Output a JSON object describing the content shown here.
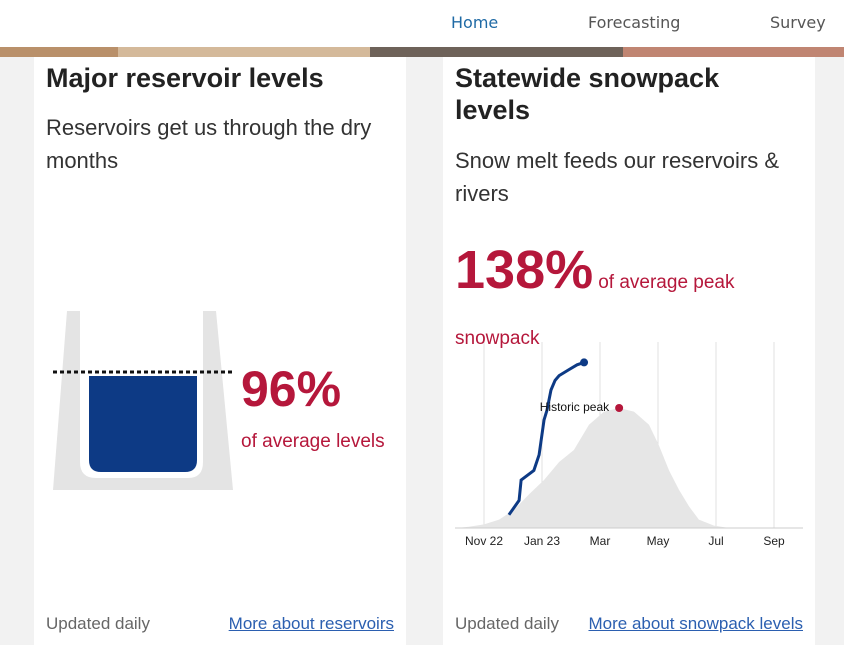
{
  "nav": {
    "items": [
      "Home",
      "Forecasting",
      "Survey"
    ]
  },
  "reservoir": {
    "title": "Major reservoir levels",
    "subtitle": "Reservoirs get us through the dry months",
    "value": 96,
    "value_label": "96%",
    "caption": "of average levels",
    "footer": "Updated daily",
    "link": "More about reservoirs"
  },
  "snowpack": {
    "title": "Statewide snowpack levels",
    "subtitle": "Snow melt feeds our reservoirs & rivers",
    "value": 138,
    "value_label": "138%",
    "caption": "of average peak snowpack",
    "footer": "Updated daily",
    "link": "More about snowpack levels"
  },
  "chart_data": {
    "type": "line",
    "xlim": [
      -1,
      11
    ],
    "ylim": [
      0,
      155
    ],
    "xticks": [
      {
        "value": 0,
        "label": "Nov 22"
      },
      {
        "value": 2,
        "label": "Jan 23"
      },
      {
        "value": 4,
        "label": "Mar"
      },
      {
        "value": 6,
        "label": "May"
      },
      {
        "value": 8,
        "label": "Jul"
      },
      {
        "value": 10,
        "label": "Sep"
      }
    ],
    "grid": true,
    "series": [
      {
        "color": "#e6e6e6",
        "fill": true,
        "x": [
          -0.93,
          -0.52,
          0,
          0.52,
          1.03,
          1.55,
          2.07,
          2.59,
          3.1,
          3.62,
          4.14,
          4.66,
          5.17,
          5.69,
          6.03,
          6.38,
          6.72,
          7.07,
          7.41,
          7.93,
          8.45
        ],
        "values": [
          0,
          1,
          3,
          7,
          15,
          28,
          40,
          55,
          65,
          86,
          97,
          100,
          97,
          86,
          69,
          48,
          32,
          18,
          7,
          2,
          0
        ]
      },
      {
        "color": "#0d3a85",
        "fill": false,
        "x": [
          0.86,
          1.21,
          1.28,
          1.72,
          1.9,
          2.07,
          2.17,
          2.31,
          2.45,
          2.59,
          2.93,
          3.21,
          3.45
        ],
        "values": [
          11,
          23,
          40,
          48,
          61,
          90,
          98,
          115,
          123,
          127,
          132,
          136,
          138
        ]
      }
    ],
    "annotation": {
      "text": "Historic peak",
      "x": 4.66,
      "y": 100,
      "color": "#b5173b"
    }
  }
}
